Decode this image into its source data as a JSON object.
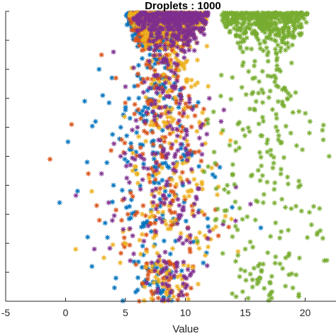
{
  "chart_data": {
    "type": "scatter",
    "title": "Droplets : 1000",
    "xlabel": "Value",
    "ylabel": "",
    "xlim": [
      -5,
      23
    ],
    "ylim": [
      0,
      1
    ],
    "xticks": [
      -5,
      0,
      5,
      10,
      15,
      20
    ],
    "yticks_visible": false,
    "grid": false,
    "legend": false,
    "marker": "asterisk",
    "series": [
      {
        "color": "#0072BD",
        "cluster": {
          "center_x": 7.5,
          "spread_x": 2.6,
          "top_x_half_width": 2.5
        },
        "points": [
          [
            -0.5,
            0.34
          ],
          [
            1.0,
            0.38
          ],
          [
            2.5,
            0.62
          ],
          [
            3.1,
            0.71
          ],
          [
            0.2,
            0.55
          ],
          [
            1.8,
            0.48
          ],
          [
            3.5,
            0.22
          ],
          [
            2.2,
            0.12
          ],
          [
            4.0,
            0.4
          ],
          [
            5.0,
            0.66
          ],
          [
            6.0,
            0.78
          ],
          [
            7.0,
            0.88
          ],
          [
            8.5,
            0.92
          ],
          [
            2.8,
            0.8
          ],
          [
            3.3,
            0.27
          ],
          [
            4.5,
            0.56
          ],
          [
            1.6,
            0.69
          ],
          [
            5.5,
            0.35
          ],
          [
            6.5,
            0.16
          ],
          [
            9.0,
            0.7
          ],
          [
            10.0,
            0.5
          ],
          [
            4.2,
            0.08
          ],
          [
            7.8,
            0.98
          ],
          [
            6.2,
            0.95
          ]
        ]
      },
      {
        "color": "#D95319",
        "cluster": {
          "center_x": 8.0,
          "spread_x": 2.4,
          "top_x_half_width": 2.8
        },
        "points": [
          [
            -1.3,
            0.49
          ],
          [
            0.5,
            0.61
          ],
          [
            3.0,
            0.85
          ],
          [
            4.2,
            0.77
          ],
          [
            1.9,
            0.44
          ],
          [
            5.2,
            0.3
          ],
          [
            6.8,
            0.58
          ],
          [
            9.5,
            0.82
          ],
          [
            10.8,
            0.64
          ],
          [
            3.8,
            0.52
          ],
          [
            2.6,
            0.33
          ],
          [
            7.5,
            0.42
          ],
          [
            8.8,
            0.26
          ],
          [
            5.8,
            0.9
          ],
          [
            11.5,
            0.97
          ]
        ]
      },
      {
        "color": "#EDB120",
        "cluster": {
          "center_x": 8.6,
          "spread_x": 2.7,
          "top_x_half_width": 3.3
        },
        "points": [
          [
            3.2,
            0.15
          ],
          [
            6.6,
            0.05
          ],
          [
            11.0,
            0.2
          ],
          [
            12.2,
            0.46
          ],
          [
            10.5,
            0.74
          ],
          [
            9.2,
            0.36
          ],
          [
            4.8,
            0.24
          ],
          [
            7.2,
            0.62
          ],
          [
            11.8,
            0.88
          ],
          [
            13.0,
            0.58
          ],
          [
            8.0,
            0.12
          ],
          [
            5.6,
            0.45
          ],
          [
            10.2,
            0.94
          ],
          [
            6.4,
            0.3
          ]
        ]
      },
      {
        "color": "#7E2F8E",
        "cluster": {
          "center_x": 8.8,
          "spread_x": 2.4,
          "top_x_half_width": 3.2
        },
        "points": [
          [
            2.4,
            0.18
          ],
          [
            3.6,
            0.34
          ],
          [
            4.6,
            0.5
          ],
          [
            5.4,
            0.14
          ],
          [
            6.9,
            0.26
          ],
          [
            8.4,
            0.4
          ],
          [
            9.6,
            0.22
          ],
          [
            10.9,
            0.36
          ],
          [
            7.6,
            0.72
          ],
          [
            6.0,
            0.6
          ],
          [
            4.0,
            0.86
          ],
          [
            9.9,
            0.84
          ],
          [
            11.4,
            0.54
          ],
          [
            5.0,
            0.74
          ],
          [
            8.1,
            0.06
          ],
          [
            3.0,
            0.44
          ],
          [
            12.0,
            0.7
          ]
        ]
      },
      {
        "color": "#77AC30",
        "cluster": {
          "center_x": 16.6,
          "spread_x": 2.8,
          "top_x_half_width": 3.6
        },
        "points": [
          [
            12.5,
            0.28
          ],
          [
            13.5,
            0.4
          ],
          [
            14.2,
            0.52
          ],
          [
            15.0,
            0.18
          ],
          [
            15.8,
            0.66
          ],
          [
            16.5,
            0.34
          ],
          [
            17.3,
            0.46
          ],
          [
            18.0,
            0.24
          ],
          [
            18.8,
            0.58
          ],
          [
            19.6,
            0.4
          ],
          [
            20.4,
            0.62
          ],
          [
            21.2,
            0.32
          ],
          [
            22.0,
            0.5
          ],
          [
            13.0,
            0.78
          ],
          [
            14.8,
            0.86
          ],
          [
            17.8,
            0.8
          ],
          [
            19.2,
            0.72
          ],
          [
            21.6,
            0.14
          ],
          [
            16.0,
            0.06
          ],
          [
            17.0,
            0.02
          ]
        ]
      }
    ]
  }
}
